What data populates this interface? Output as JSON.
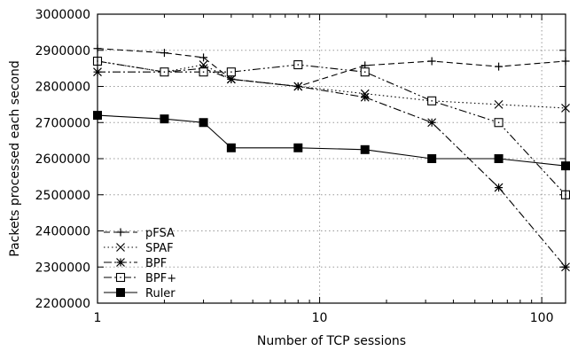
{
  "chart_data": {
    "type": "line",
    "xlabel": "Number of TCP sessions",
    "ylabel": "Packets processed each second",
    "x_scale": "log",
    "xlim": [
      1,
      128
    ],
    "ylim": [
      2200000,
      3000000
    ],
    "x_ticks": [
      1,
      10,
      100
    ],
    "x_tick_labels": [
      "1",
      "10",
      "100"
    ],
    "y_ticks": [
      2200000,
      2300000,
      2400000,
      2500000,
      2600000,
      2700000,
      2800000,
      2900000,
      3000000
    ],
    "y_tick_labels": [
      "2200000",
      "2300000",
      "2400000",
      "2500000",
      "2600000",
      "2700000",
      "2800000",
      "2900000",
      "3000000"
    ],
    "grid": true,
    "legend_position": "bottom-left",
    "x": [
      1,
      2,
      3,
      4,
      8,
      16,
      32,
      64,
      128
    ],
    "series": [
      {
        "name": "pFSA",
        "marker": "plus",
        "dash": "dashed",
        "values": [
          2905000,
          2893000,
          2880000,
          2820000,
          2800000,
          2858000,
          2870000,
          2855000,
          2870000
        ]
      },
      {
        "name": "SPAF",
        "marker": "cross",
        "dash": "dotted",
        "values": [
          2870000,
          2840000,
          2860000,
          2820000,
          2800000,
          2780000,
          2760000,
          2750000,
          2740000
        ]
      },
      {
        "name": "BPF",
        "marker": "star",
        "dash": "dashdot",
        "values": [
          2840000,
          2840000,
          2850000,
          2820000,
          2800000,
          2770000,
          2700000,
          2520000,
          2300000
        ]
      },
      {
        "name": "BPF+",
        "marker": "open-square",
        "dash": "dashdotdot",
        "values": [
          2870000,
          2840000,
          2840000,
          2840000,
          2860000,
          2840000,
          2760000,
          2700000,
          2500000
        ]
      },
      {
        "name": "Ruler",
        "marker": "filled-square",
        "dash": "solid",
        "values": [
          2720000,
          2710000,
          2700000,
          2630000,
          2630000,
          2625000,
          2600000,
          2600000,
          2580000
        ]
      }
    ]
  }
}
